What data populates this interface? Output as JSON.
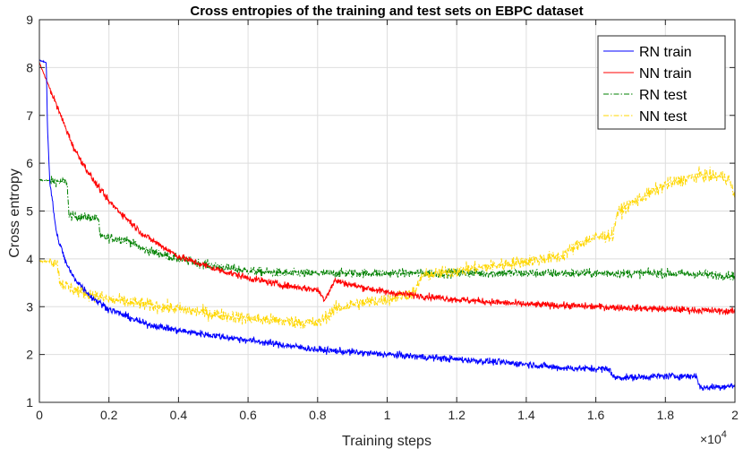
{
  "chart_data": {
    "type": "line",
    "title": "Cross entropies of the training and test sets on EBPC dataset",
    "xlabel": "Training steps",
    "ylabel": "Cross entropy",
    "x_multiplier_label": "×10",
    "x_multiplier_exponent": "4",
    "xlim": [
      0,
      20000
    ],
    "ylim": [
      1,
      9
    ],
    "xticks": [
      0,
      2000,
      4000,
      6000,
      8000,
      10000,
      12000,
      14000,
      16000,
      18000,
      20000
    ],
    "xtick_labels": [
      "0",
      "0.2",
      "0.4",
      "0.6",
      "0.8",
      "1",
      "1.2",
      "1.4",
      "1.6",
      "1.8",
      "2"
    ],
    "yticks": [
      1,
      2,
      3,
      4,
      5,
      6,
      7,
      8,
      9
    ],
    "ytick_labels": [
      "1",
      "2",
      "3",
      "4",
      "5",
      "6",
      "7",
      "8",
      "9"
    ],
    "grid": true,
    "legend_position": "top-right",
    "series": [
      {
        "name": "RN train",
        "color": "#0000ff",
        "style": "solid",
        "noise": 0.07,
        "x": [
          0,
          150,
          200,
          230,
          300,
          500,
          800,
          1000,
          1500,
          2000,
          3000,
          4000,
          5000,
          6000,
          7000,
          8000,
          9000,
          10000,
          11000,
          12000,
          13000,
          14000,
          15000,
          16000,
          16400,
          16500,
          17000,
          18000,
          18900,
          19000,
          20000
        ],
        "y": [
          8.15,
          8.12,
          8.1,
          6.8,
          5.6,
          4.5,
          3.85,
          3.6,
          3.2,
          2.95,
          2.65,
          2.5,
          2.4,
          2.3,
          2.2,
          2.1,
          2.05,
          2.0,
          1.95,
          1.9,
          1.85,
          1.8,
          1.72,
          1.7,
          1.7,
          1.52,
          1.52,
          1.55,
          1.55,
          1.3,
          1.35
        ]
      },
      {
        "name": "NN train",
        "color": "#ff0000",
        "style": "solid",
        "noise": 0.07,
        "x": [
          0,
          500,
          1000,
          1500,
          2000,
          3000,
          4000,
          5000,
          6000,
          7000,
          8000,
          8200,
          8500,
          9000,
          10000,
          12000,
          14000,
          16000,
          18000,
          20000
        ],
        "y": [
          8.1,
          7.2,
          6.3,
          5.7,
          5.2,
          4.5,
          4.05,
          3.8,
          3.6,
          3.45,
          3.35,
          3.15,
          3.55,
          3.45,
          3.3,
          3.15,
          3.05,
          3.0,
          2.95,
          2.9
        ]
      },
      {
        "name": "RN test",
        "color": "#008000",
        "style": "dashdot",
        "noise": 0.09,
        "x": [
          0,
          800,
          850,
          1700,
          1750,
          2500,
          3000,
          4000,
          5000,
          6000,
          7000,
          8000,
          10000,
          12000,
          14000,
          16000,
          18000,
          20000
        ],
        "y": [
          5.65,
          5.6,
          4.9,
          4.85,
          4.45,
          4.4,
          4.2,
          4.0,
          3.85,
          3.75,
          3.7,
          3.7,
          3.7,
          3.7,
          3.7,
          3.7,
          3.7,
          3.65
        ]
      },
      {
        "name": "NN test",
        "color": "#ffd700",
        "style": "dashdot",
        "noise": 0.13,
        "x": [
          0,
          500,
          600,
          1000,
          1500,
          2000,
          3000,
          4000,
          5000,
          6000,
          7000,
          8000,
          8500,
          9000,
          10000,
          10800,
          11000,
          12000,
          13000,
          14000,
          15000,
          15600,
          16000,
          16500,
          16600,
          17000,
          18000,
          19000,
          19800,
          20000
        ],
        "y": [
          3.95,
          3.95,
          3.5,
          3.35,
          3.25,
          3.15,
          3.05,
          2.95,
          2.85,
          2.75,
          2.7,
          2.65,
          2.95,
          3.05,
          3.15,
          3.3,
          3.65,
          3.75,
          3.85,
          3.95,
          4.05,
          4.35,
          4.45,
          4.5,
          4.95,
          5.15,
          5.55,
          5.75,
          5.7,
          5.3
        ]
      }
    ]
  }
}
